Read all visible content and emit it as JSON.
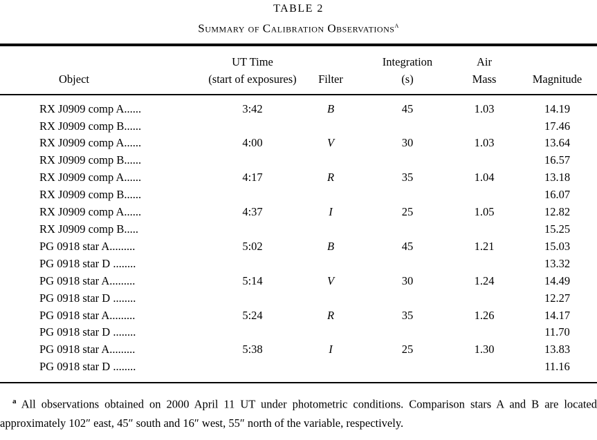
{
  "page": {
    "title": "TABLE 2",
    "subtitle": "Summary of Calibration Observations",
    "subtitle_superscript": "a"
  },
  "table": {
    "columns": {
      "object": "Object",
      "ut_line1": "UT Time",
      "ut_line2": "(start of exposures)",
      "filter": "Filter",
      "integration_line1": "Integration",
      "integration_line2": "(s)",
      "air_line1": "Air",
      "air_line2": "Mass",
      "magnitude": "Magnitude"
    },
    "rows": [
      {
        "object": "RX J0909 comp A......",
        "ut": "3:42",
        "filter": "B",
        "integration": "45",
        "air_mass": "1.03",
        "magnitude": "14.19"
      },
      {
        "object": "RX J0909 comp B......",
        "ut": "",
        "filter": "",
        "integration": "",
        "air_mass": "",
        "magnitude": "17.46"
      },
      {
        "object": "RX J0909 comp A......",
        "ut": "4:00",
        "filter": "V",
        "integration": "30",
        "air_mass": "1.03",
        "magnitude": "13.64"
      },
      {
        "object": "RX J0909 comp B......",
        "ut": "",
        "filter": "",
        "integration": "",
        "air_mass": "",
        "magnitude": "16.57"
      },
      {
        "object": "RX J0909 comp A......",
        "ut": "4:17",
        "filter": "R",
        "integration": "35",
        "air_mass": "1.04",
        "magnitude": "13.18"
      },
      {
        "object": "RX J0909 comp B......",
        "ut": "",
        "filter": "",
        "integration": "",
        "air_mass": "",
        "magnitude": "16.07"
      },
      {
        "object": "RX J0909 comp A......",
        "ut": "4:37",
        "filter": "I",
        "integration": "25",
        "air_mass": "1.05",
        "magnitude": "12.82"
      },
      {
        "object": "RX J0909 comp B.....",
        "ut": "",
        "filter": "",
        "integration": "",
        "air_mass": "",
        "magnitude": "15.25"
      },
      {
        "object": "PG 0918 star A.........",
        "ut": "5:02",
        "filter": "B",
        "integration": "45",
        "air_mass": "1.21",
        "magnitude": "15.03"
      },
      {
        "object": "PG 0918 star D ........",
        "ut": "",
        "filter": "",
        "integration": "",
        "air_mass": "",
        "magnitude": "13.32"
      },
      {
        "object": "PG 0918 star A.........",
        "ut": "5:14",
        "filter": "V",
        "integration": "30",
        "air_mass": "1.24",
        "magnitude": "14.49"
      },
      {
        "object": "PG 0918 star D ........",
        "ut": "",
        "filter": "",
        "integration": "",
        "air_mass": "",
        "magnitude": "12.27"
      },
      {
        "object": "PG 0918 star A.........",
        "ut": "5:24",
        "filter": "R",
        "integration": "35",
        "air_mass": "1.26",
        "magnitude": "14.17"
      },
      {
        "object": "PG 0918 star D ........",
        "ut": "",
        "filter": "",
        "integration": "",
        "air_mass": "",
        "magnitude": "11.70"
      },
      {
        "object": "PG 0918 star A.........",
        "ut": "5:38",
        "filter": "I",
        "integration": "25",
        "air_mass": "1.30",
        "magnitude": "13.83"
      },
      {
        "object": "PG 0918 star D ........",
        "ut": "",
        "filter": "",
        "integration": "",
        "air_mass": "",
        "magnitude": "11.16"
      }
    ]
  },
  "footnote": {
    "superscript": "a",
    "text": "All observations obtained on 2000 April 11 UT under photometric conditions. Comparison stars A and B are located approximately 102″ east, 45″ south and 16″ west, 55″ north of the variable, respectively."
  }
}
